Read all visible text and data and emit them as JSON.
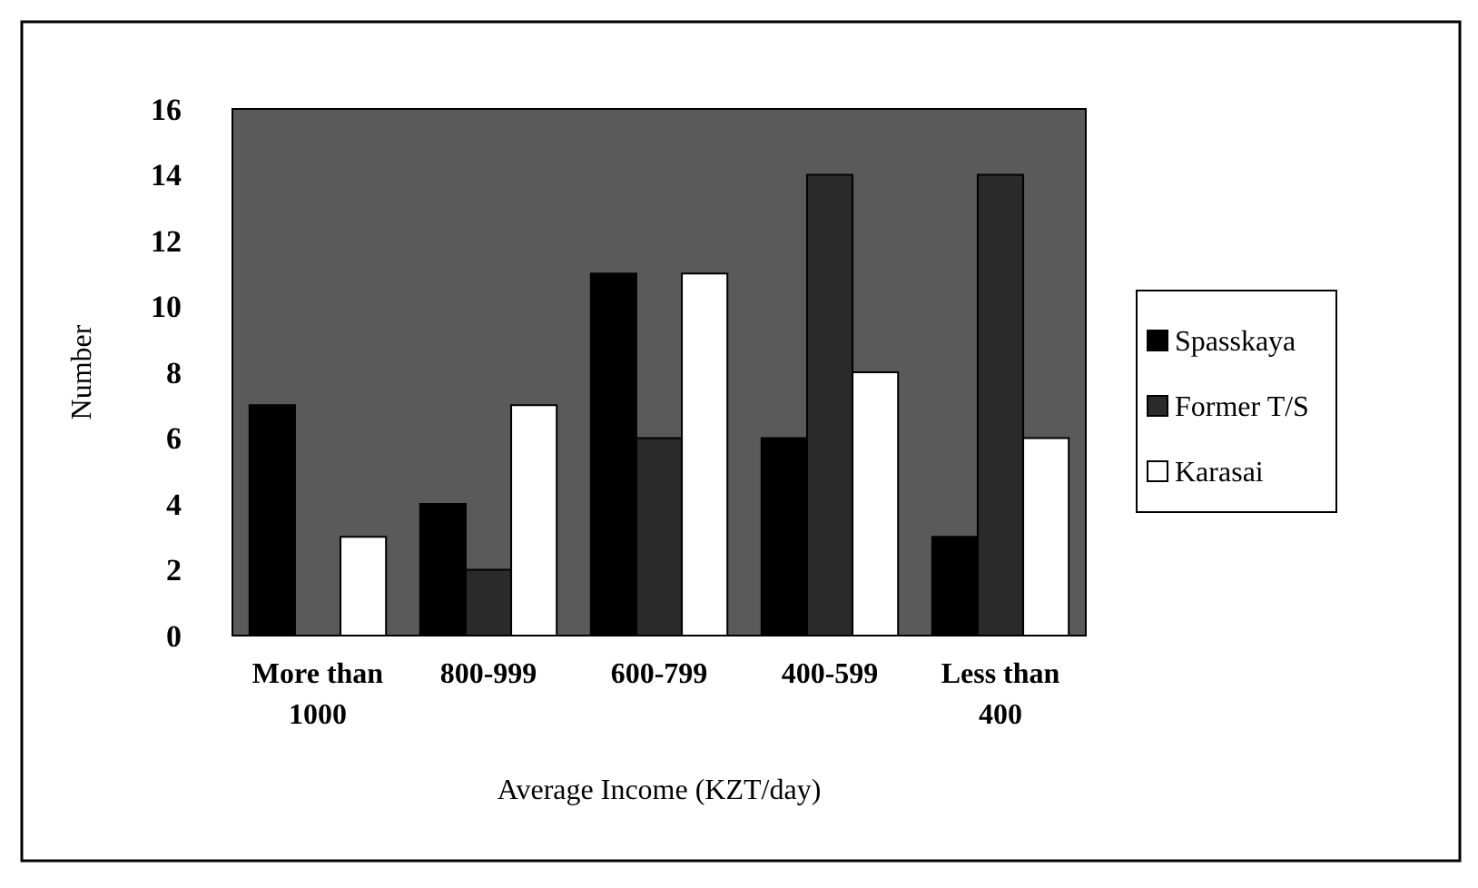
{
  "chart_data": {
    "type": "bar",
    "xlabel": "Average Income (KZT/day)",
    "ylabel": "Number",
    "categories": [
      "More than 1000",
      "800-999",
      "600-799",
      "400-599",
      "Less than 400"
    ],
    "series": [
      {
        "name": "Spasskaya",
        "color": "#000000",
        "values": [
          7,
          4,
          11,
          6,
          3
        ]
      },
      {
        "name": "Former T/S",
        "color": "#2a2a2a",
        "values": [
          0,
          2,
          6,
          14,
          14
        ]
      },
      {
        "name": "Karasai",
        "color": "#ffffff",
        "values": [
          3,
          7,
          11,
          8,
          6
        ]
      }
    ],
    "ylim": [
      0,
      16
    ],
    "yticks": [
      0,
      2,
      4,
      6,
      8,
      10,
      12,
      14,
      16
    ],
    "grid": false,
    "legend": "right"
  }
}
